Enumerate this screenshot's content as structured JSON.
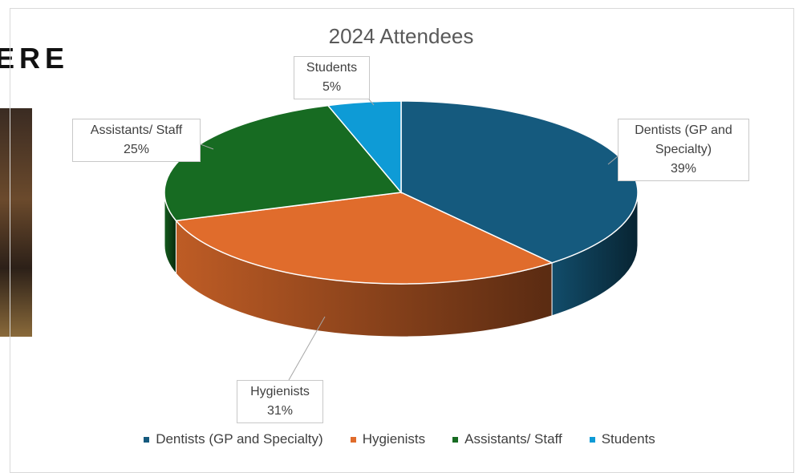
{
  "page": {
    "heading": "ERE"
  },
  "chart_data": {
    "type": "pie3d",
    "title": "2024 Attendees",
    "categories": [
      "Dentists (GP and Specialty)",
      "Hygienists",
      "Assistants/ Staff",
      "Students"
    ],
    "values": [
      39,
      31,
      25,
      5
    ],
    "value_labels": [
      "39%",
      "31%",
      "25%",
      "5%"
    ],
    "colors": [
      "#155a7e",
      "#e06c2c",
      "#176b22",
      "#0e9bd6"
    ],
    "legend": "bottom"
  }
}
